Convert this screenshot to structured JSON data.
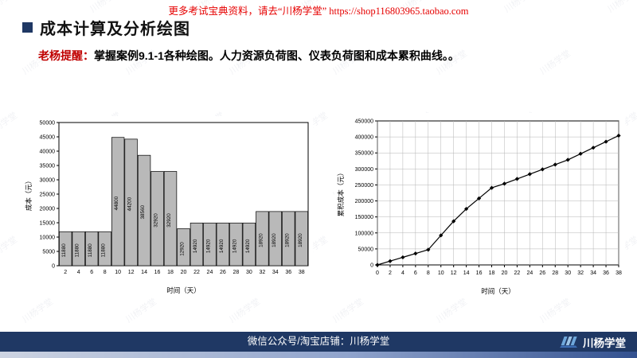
{
  "header": {
    "promo_text": "更多考试宝典资料，请去“川杨学堂” https://shop116803965.taobao.com",
    "title": "成本计算及分析绘图",
    "reminder_label": "老杨提醒：",
    "reminder_text": "掌握案例9.1-1各种绘图。人力资源负荷图、仪表负荷图和成本累积曲线。。"
  },
  "footer": {
    "center_text": "微信公众号/淘宝店铺：川杨学堂",
    "logo_text": "川杨学堂"
  },
  "watermark": {
    "text": "川杨学堂"
  },
  "colors": {
    "navy": "#1f3864",
    "accent_red": "#c00000",
    "promo_red": "#e60000",
    "bar_fill": "#b9b9b9",
    "strip_light": "#cdd4e2",
    "strip_dark": "#33518f",
    "logo_blue": "#6fa8dc"
  },
  "chart_data": [
    {
      "type": "bar",
      "title": "",
      "categories": [
        2,
        4,
        6,
        8,
        10,
        12,
        14,
        16,
        18,
        20,
        22,
        24,
        26,
        28,
        30,
        32,
        34,
        36,
        38
      ],
      "values": [
        11880,
        11880,
        11880,
        11880,
        44800,
        44200,
        38560,
        32920,
        32920,
        12920,
        14920,
        14920,
        14920,
        14920,
        14920,
        18920,
        18920,
        18920,
        18920
      ],
      "xlabel": "时间（天）",
      "ylabel": "成本（元）",
      "ylim": [
        0,
        50000
      ],
      "ytick": 5000,
      "grid": false,
      "bar_color": "#b9b9b9"
    },
    {
      "type": "line",
      "title": "",
      "x": [
        0,
        2,
        4,
        6,
        8,
        10,
        12,
        14,
        16,
        18,
        20,
        22,
        24,
        26,
        28,
        30,
        32,
        34,
        36,
        38
      ],
      "values": [
        0,
        11880,
        23760,
        35640,
        47520,
        92320,
        136520,
        175080,
        208000,
        240920,
        253840,
        268760,
        283680,
        298600,
        313520,
        328440,
        347360,
        366280,
        385200,
        404120
      ],
      "xlabel": "时间（天）",
      "ylabel": "累积成本（元）",
      "ylim": [
        0,
        450000
      ],
      "ytick": 50000,
      "grid": true,
      "marker": "diamond",
      "line_color": "#000000"
    }
  ]
}
